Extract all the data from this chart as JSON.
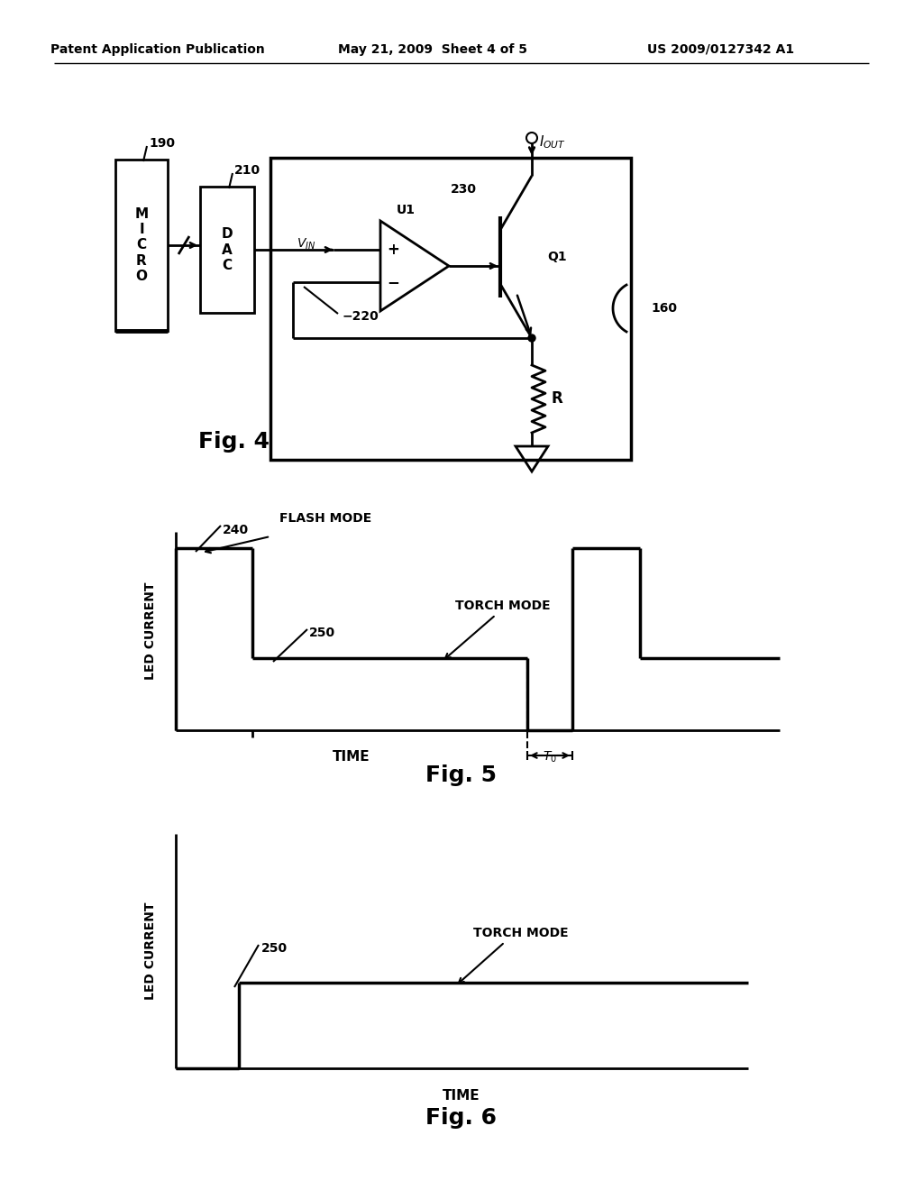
{
  "bg_color": "#ffffff",
  "header_left": "Patent Application Publication",
  "header_mid": "May 21, 2009  Sheet 4 of 5",
  "header_right": "US 2009/0127342 A1"
}
